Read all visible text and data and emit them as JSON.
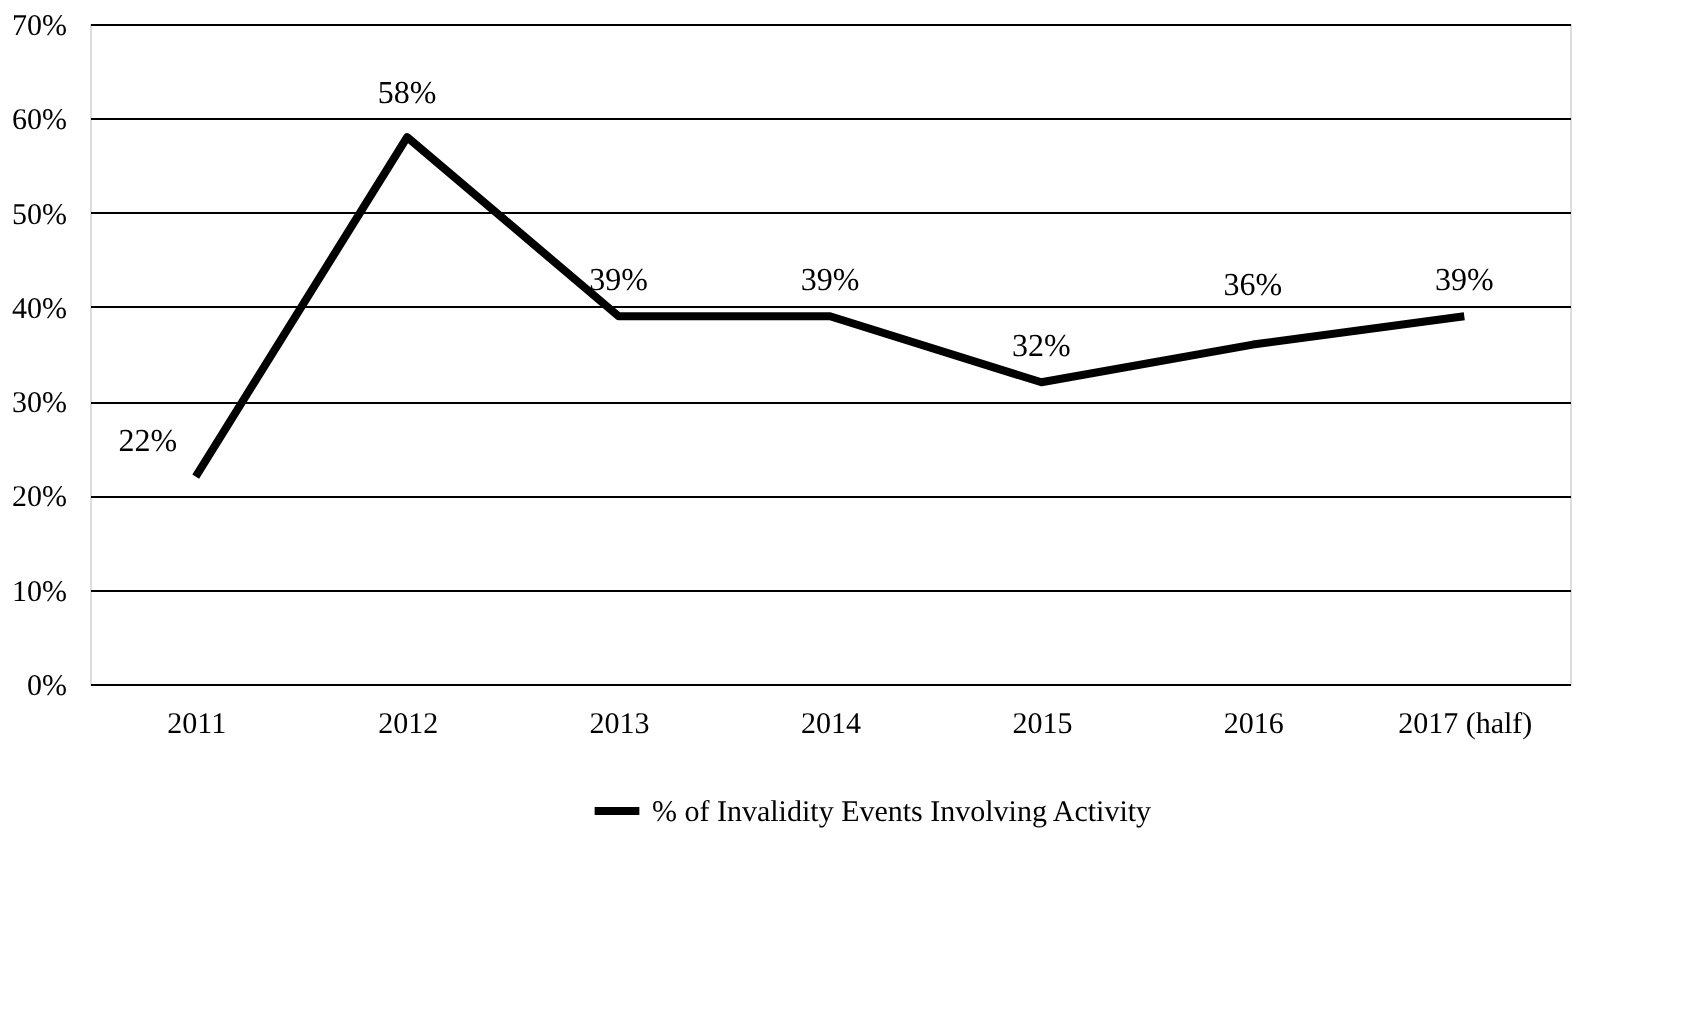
{
  "chart_data": {
    "type": "line",
    "categories": [
      "2011",
      "2012",
      "2013",
      "2014",
      "2015",
      "2016",
      "2017 (half)"
    ],
    "series": [
      {
        "name": "% of Invalidity Events Involving Activity",
        "color": "#000000",
        "values": [
          22,
          58,
          39,
          39,
          32,
          36,
          39
        ],
        "value_labels": [
          "22%",
          "58%",
          "39%",
          "39%",
          "32%",
          "36%",
          "39%"
        ]
      }
    ],
    "ylim": [
      0,
      70
    ],
    "yticks": [
      {
        "value": 0,
        "label": "0%"
      },
      {
        "value": 10,
        "label": "10%"
      },
      {
        "value": 20,
        "label": "20%"
      },
      {
        "value": 30,
        "label": "30%"
      },
      {
        "value": 40,
        "label": "40%"
      },
      {
        "value": 50,
        "label": "50%"
      },
      {
        "value": 60,
        "label": "60%"
      },
      {
        "value": 70,
        "label": "70%"
      }
    ],
    "grid": "y",
    "legend": "bottom",
    "marker": "none",
    "line_style": "solid"
  }
}
